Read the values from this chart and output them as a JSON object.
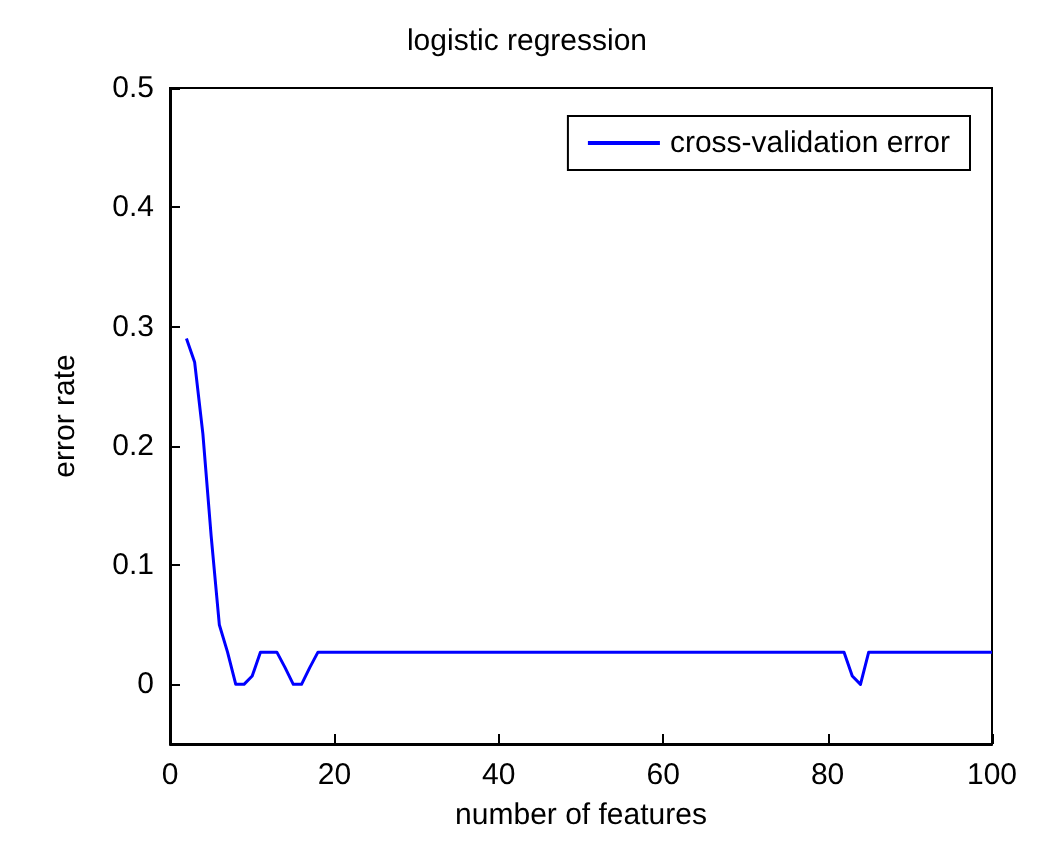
{
  "chart_data": {
    "type": "line",
    "title": "logistic regression",
    "xlabel": "number of features",
    "ylabel": "error rate",
    "x": [
      2,
      3,
      4,
      5,
      6,
      7,
      8,
      9,
      10,
      11,
      12,
      13,
      14,
      15,
      16,
      17,
      18,
      20,
      30,
      40,
      50,
      60,
      70,
      80,
      82,
      83,
      84,
      85,
      90,
      100
    ],
    "series": [
      {
        "name": "cross-validation error",
        "color": "#0000ff",
        "values": [
          0.29,
          0.27,
          0.21,
          0.125,
          0.05,
          0.027,
          0,
          0,
          0.007,
          0.027,
          0.027,
          0.027,
          0.014,
          0,
          0,
          0.014,
          0.027,
          0.027,
          0.027,
          0.027,
          0.027,
          0.027,
          0.027,
          0.027,
          0.027,
          0.007,
          0,
          0.027,
          0.027,
          0.027
        ]
      }
    ],
    "xlim": [
      0,
      100
    ],
    "xticks": [
      0,
      20,
      40,
      60,
      80,
      100
    ],
    "ylim": [
      -0.05,
      0.5
    ],
    "yticks": [
      0,
      0.1,
      0.2,
      0.3,
      0.4,
      0.5
    ],
    "grid": false,
    "legend": "top right",
    "marker": "none",
    "line_style": "solid"
  }
}
